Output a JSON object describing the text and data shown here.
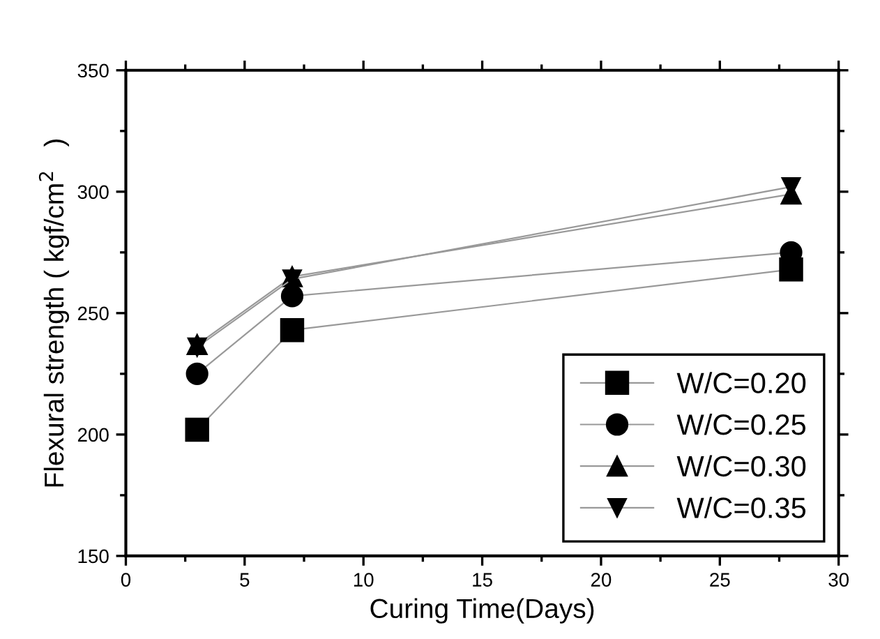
{
  "chart_data": {
    "type": "line",
    "xlabel": "Curing Time(Days)",
    "ylabel": "Flexural strength ( kgf/cm$^{2}$   )",
    "x": [
      3,
      7,
      28
    ],
    "series": [
      {
        "name": "W/C=0.20",
        "color": "#000000",
        "marker": "square",
        "values": [
          202,
          243,
          268
        ]
      },
      {
        "name": "W/C=0.25",
        "color": "#000000",
        "marker": "circle",
        "values": [
          225,
          257,
          275
        ]
      },
      {
        "name": "W/C=0.30",
        "color": "#000000",
        "marker": "triangle",
        "values": [
          237,
          265,
          299
        ]
      },
      {
        "name": "W/C=0.35",
        "color": "#000000",
        "marker": "triangle_down",
        "values": [
          236,
          264,
          302
        ]
      }
    ],
    "xlim": [
      0,
      30
    ],
    "ylim": [
      150,
      350
    ],
    "xticks": [
      0,
      5,
      10,
      15,
      20,
      25,
      30
    ],
    "yticks": [
      150,
      200,
      250,
      300,
      350
    ],
    "grid": false,
    "legend": "bottom right",
    "line_style": "solid"
  }
}
